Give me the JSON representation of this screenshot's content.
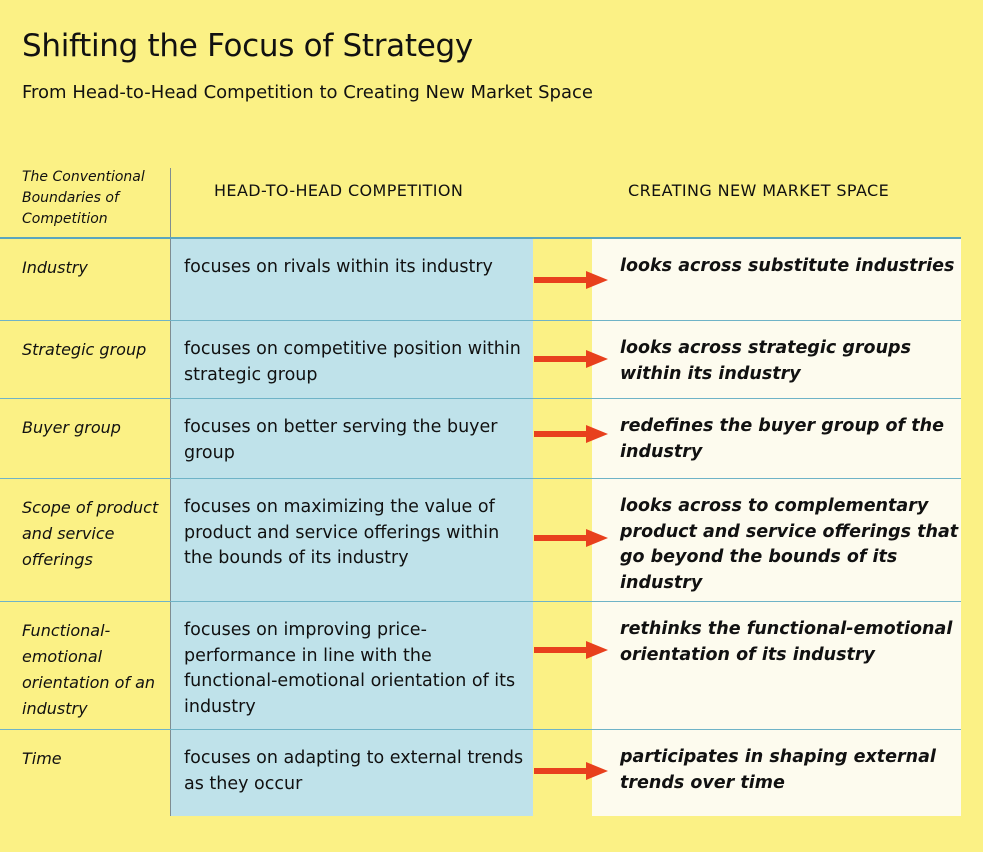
{
  "title": "Shifting the Focus of Strategy",
  "subtitle": "From Head-to-Head Competition to Creating New Market Space",
  "header": {
    "dimension": "The Conventional Boundaries of Competition",
    "conventional": "HEAD-TO-HEAD COMPETITION",
    "new_space": "CREATING NEW MARKET SPACE"
  },
  "colors": {
    "background": "#fbf185",
    "middle_column": "#bfe2ea",
    "right_column": "#fdfbee",
    "arrow": "#e8401d",
    "rule": "#6fb3c7"
  },
  "rows": [
    {
      "dimension": "Industry",
      "conventional": "focuses on rivals within its industry",
      "new_space": "looks across substitute industries",
      "icon": "right-arrow-icon"
    },
    {
      "dimension": "Strategic group",
      "conventional": "focuses on competitive position within strategic group",
      "new_space": "looks across strategic groups within its industry",
      "icon": "right-arrow-icon"
    },
    {
      "dimension": "Buyer group",
      "conventional": "focuses on better serving the buyer group",
      "new_space": "redefines the buyer group of the industry",
      "icon": "right-arrow-icon"
    },
    {
      "dimension": "Scope of product and service offerings",
      "conventional": "focuses on maximizing the value of product and service offerings within the bounds of its industry",
      "new_space": "looks across to complementary product and service offerings that go beyond the bounds of its industry",
      "icon": "right-arrow-icon"
    },
    {
      "dimension": "Functional-emotional orientation of an industry",
      "conventional": "focuses on improving price-performance in line with the functional-emotional orientation of its industry",
      "new_space": "rethinks the functional-emotional orientation of its industry",
      "icon": "right-arrow-icon"
    },
    {
      "dimension": "Time",
      "conventional": "focuses on adapting to external trends as they occur",
      "new_space": "participates in shaping external trends over time",
      "icon": "right-arrow-icon"
    }
  ]
}
